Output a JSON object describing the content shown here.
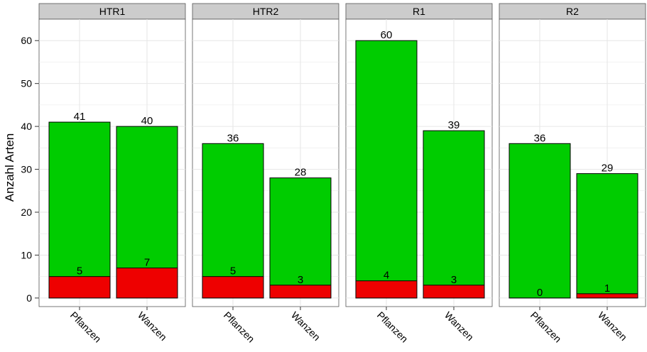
{
  "chart_data": {
    "type": "bar",
    "stacked": true,
    "facets": [
      "HTR1",
      "HTR2",
      "R1",
      "R2"
    ],
    "categories": [
      "Pflanzen",
      "Wanzen"
    ],
    "ylabel": "Anzahl Arten",
    "xlabel": "",
    "ylim": [
      -2,
      65
    ],
    "yticks": [
      0,
      10,
      20,
      30,
      40,
      50,
      60
    ],
    "series": [
      {
        "color": "#ee0000",
        "values": {
          "HTR1": [
            5,
            7
          ],
          "HTR2": [
            5,
            3
          ],
          "R1": [
            4,
            3
          ],
          "R2": [
            0,
            1
          ]
        }
      },
      {
        "color": "#00cc00",
        "values": {
          "HTR1": [
            41,
            40
          ],
          "HTR2": [
            36,
            28
          ],
          "R1": [
            60,
            39
          ],
          "R2": [
            36,
            29
          ]
        }
      }
    ],
    "grid": true,
    "panel_background": "#ffffff",
    "strip_background": "#cccccc",
    "gridline_color": "#e6e6e6",
    "legend": "none"
  }
}
